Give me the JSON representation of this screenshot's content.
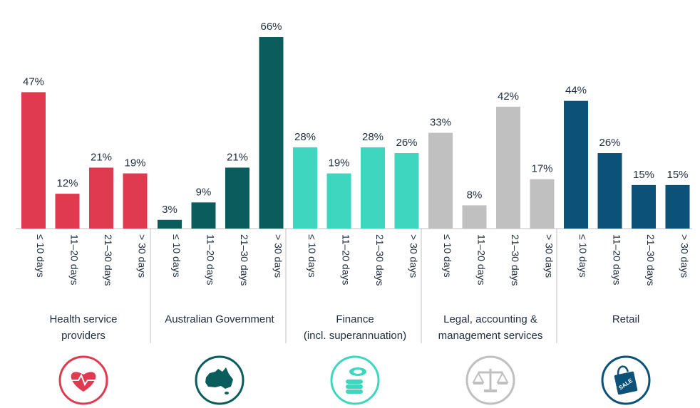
{
  "chart_data": {
    "type": "bar",
    "ylim": [
      0,
      70
    ],
    "grid": false,
    "categories": [
      "≤ 10 days",
      "11–20 days",
      "21–30 days",
      "> 30 days"
    ],
    "groups": [
      {
        "label_lines": [
          "Health service",
          "providers"
        ],
        "color": "#e03a50",
        "icon": "heart-rate-icon",
        "values": [
          47,
          12,
          21,
          19
        ],
        "labels": [
          "47%",
          "12%",
          "21%",
          "19%"
        ]
      },
      {
        "label_lines": [
          "Australian Government"
        ],
        "color": "#0b5d5d",
        "icon": "australia-map-icon",
        "values": [
          3,
          9,
          21,
          66
        ],
        "labels": [
          "3%",
          "9%",
          "21%",
          "66%"
        ]
      },
      {
        "label_lines": [
          "Finance",
          "(incl. superannuation)"
        ],
        "color": "#3fd6bf",
        "icon": "coins-stack-icon",
        "values": [
          28,
          19,
          28,
          26
        ],
        "labels": [
          "28%",
          "19%",
          "28%",
          "26%"
        ]
      },
      {
        "label_lines": [
          "Legal, accounting &",
          "management services"
        ],
        "color": "#c0c0c0",
        "icon": "scales-of-justice-icon",
        "values": [
          33,
          8,
          42,
          17
        ],
        "labels": [
          "33%",
          "8%",
          "42%",
          "17%"
        ]
      },
      {
        "label_lines": [
          "Retail"
        ],
        "color": "#0c5178",
        "icon": "shopping-bag-sale-icon",
        "values": [
          44,
          26,
          15,
          15
        ],
        "labels": [
          "44%",
          "26%",
          "15%",
          "15%"
        ],
        "icon_text": "SALE"
      }
    ]
  }
}
